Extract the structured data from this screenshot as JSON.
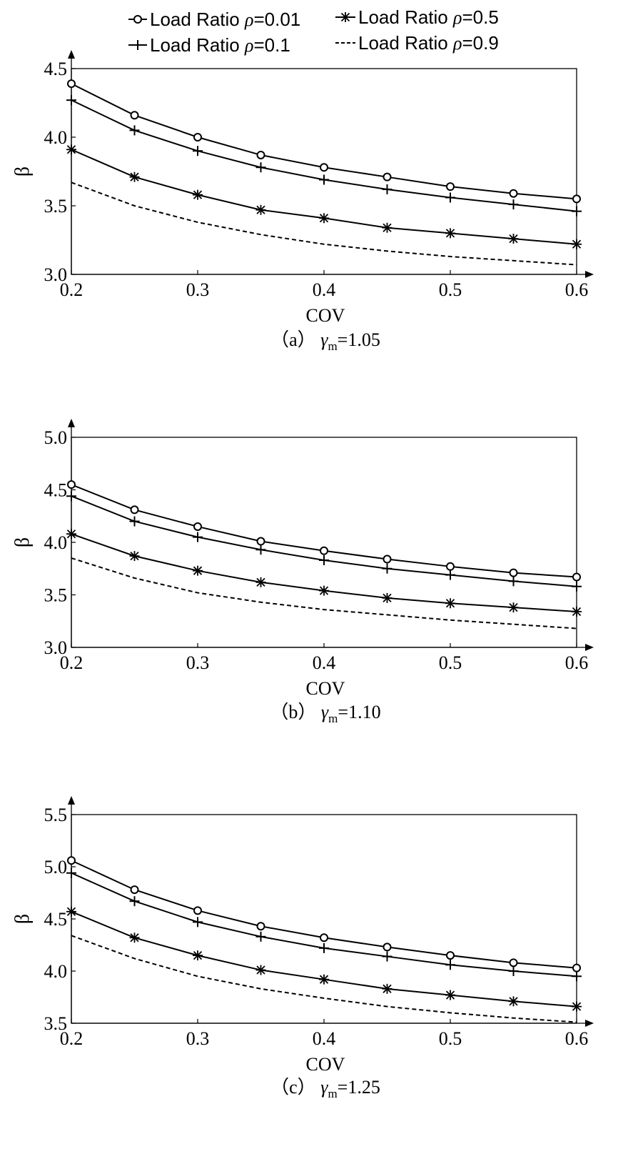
{
  "legend": {
    "placement": "top, above panel (a)",
    "entries": [
      {
        "id": "r001",
        "text": "Load Ratio ",
        "sym": "ρ",
        "val": "=0.01",
        "marker": "circle",
        "dash": "solid"
      },
      {
        "id": "r01",
        "text": "Load Ratio ",
        "sym": "ρ",
        "val": "=0.1",
        "marker": "plus",
        "dash": "solid"
      },
      {
        "id": "r05",
        "text": "Load Ratio ",
        "sym": "ρ",
        "val": "=0.5",
        "marker": "star",
        "dash": "solid"
      },
      {
        "id": "r09",
        "text": "Load Ratio ",
        "sym": "ρ",
        "val": "=0.9",
        "marker": "none",
        "dash": "dashed"
      }
    ]
  },
  "chart_data": [
    {
      "type": "line",
      "caption": {
        "open": "（a）",
        "gamma": "γ",
        "sub": "m",
        "value": "=1.05"
      },
      "xlabel": "COV",
      "ylabel": "β",
      "xlim": [
        0.2,
        0.6
      ],
      "ylim": [
        3.0,
        4.5
      ],
      "xticks": [
        "0.2",
        "0.3",
        "0.4",
        "0.5",
        "0.6"
      ],
      "yticks": [
        "3.0",
        "3.5",
        "4.0",
        "4.5"
      ],
      "x": [
        0.2,
        0.25,
        0.3,
        0.35,
        0.4,
        0.45,
        0.5,
        0.55,
        0.6
      ],
      "series": [
        {
          "name": "Load Ratio ρ=0.01",
          "marker": "circle",
          "values": [
            4.39,
            4.16,
            4.0,
            3.87,
            3.78,
            3.71,
            3.64,
            3.59,
            3.55
          ]
        },
        {
          "name": "Load Ratio ρ=0.1",
          "marker": "plus",
          "values": [
            4.27,
            4.05,
            3.9,
            3.78,
            3.69,
            3.62,
            3.56,
            3.51,
            3.46
          ]
        },
        {
          "name": "Load Ratio ρ=0.5",
          "marker": "star",
          "values": [
            3.91,
            3.71,
            3.58,
            3.47,
            3.41,
            3.34,
            3.3,
            3.26,
            3.22
          ]
        },
        {
          "name": "Load Ratio ρ=0.9",
          "marker": "none",
          "values": [
            3.67,
            3.5,
            3.38,
            3.29,
            3.22,
            3.17,
            3.13,
            3.1,
            3.07
          ]
        }
      ]
    },
    {
      "type": "line",
      "caption": {
        "open": "（b）",
        "gamma": "γ",
        "sub": "m",
        "value": "=1.10"
      },
      "xlabel": "COV",
      "ylabel": "β",
      "xlim": [
        0.2,
        0.6
      ],
      "ylim": [
        3.0,
        5.0
      ],
      "xticks": [
        "0.2",
        "0.3",
        "0.4",
        "0.5",
        "0.6"
      ],
      "yticks": [
        "3.0",
        "3.5",
        "4.0",
        "4.5",
        "5.0"
      ],
      "x": [
        0.2,
        0.25,
        0.3,
        0.35,
        0.4,
        0.45,
        0.5,
        0.55,
        0.6
      ],
      "series": [
        {
          "name": "Load Ratio ρ=0.01",
          "marker": "circle",
          "values": [
            4.55,
            4.31,
            4.15,
            4.01,
            3.92,
            3.84,
            3.77,
            3.71,
            3.67
          ]
        },
        {
          "name": "Load Ratio ρ=0.1",
          "marker": "plus",
          "values": [
            4.44,
            4.2,
            4.05,
            3.93,
            3.83,
            3.75,
            3.69,
            3.63,
            3.58
          ]
        },
        {
          "name": "Load Ratio ρ=0.5",
          "marker": "star",
          "values": [
            4.08,
            3.87,
            3.73,
            3.62,
            3.54,
            3.47,
            3.42,
            3.38,
            3.34
          ]
        },
        {
          "name": "Load Ratio ρ=0.9",
          "marker": "none",
          "values": [
            3.85,
            3.66,
            3.52,
            3.43,
            3.36,
            3.31,
            3.26,
            3.22,
            3.18
          ]
        }
      ]
    },
    {
      "type": "line",
      "caption": {
        "open": "（c）",
        "gamma": "γ",
        "sub": "m",
        "value": "=1.25"
      },
      "xlabel": "COV",
      "ylabel": "β",
      "xlim": [
        0.2,
        0.6
      ],
      "ylim": [
        3.5,
        5.5
      ],
      "xticks": [
        "0.2",
        "0.3",
        "0.4",
        "0.5",
        "0.6"
      ],
      "yticks": [
        "3.5",
        "4.0",
        "4.5",
        "5.0",
        "5.5"
      ],
      "x": [
        0.2,
        0.25,
        0.3,
        0.35,
        0.4,
        0.45,
        0.5,
        0.55,
        0.6
      ],
      "series": [
        {
          "name": "Load Ratio ρ=0.01",
          "marker": "circle",
          "values": [
            5.06,
            4.78,
            4.58,
            4.43,
            4.32,
            4.23,
            4.15,
            4.08,
            4.03
          ]
        },
        {
          "name": "Load Ratio ρ=0.1",
          "marker": "plus",
          "values": [
            4.94,
            4.67,
            4.47,
            4.33,
            4.22,
            4.14,
            4.06,
            4.0,
            3.95
          ]
        },
        {
          "name": "Load Ratio ρ=0.5",
          "marker": "star",
          "values": [
            4.57,
            4.32,
            4.15,
            4.01,
            3.92,
            3.83,
            3.77,
            3.71,
            3.66
          ]
        },
        {
          "name": "Load Ratio ρ=0.9",
          "marker": "none",
          "values": [
            4.34,
            4.12,
            3.95,
            3.83,
            3.74,
            3.66,
            3.6,
            3.55,
            3.51
          ]
        }
      ]
    }
  ]
}
